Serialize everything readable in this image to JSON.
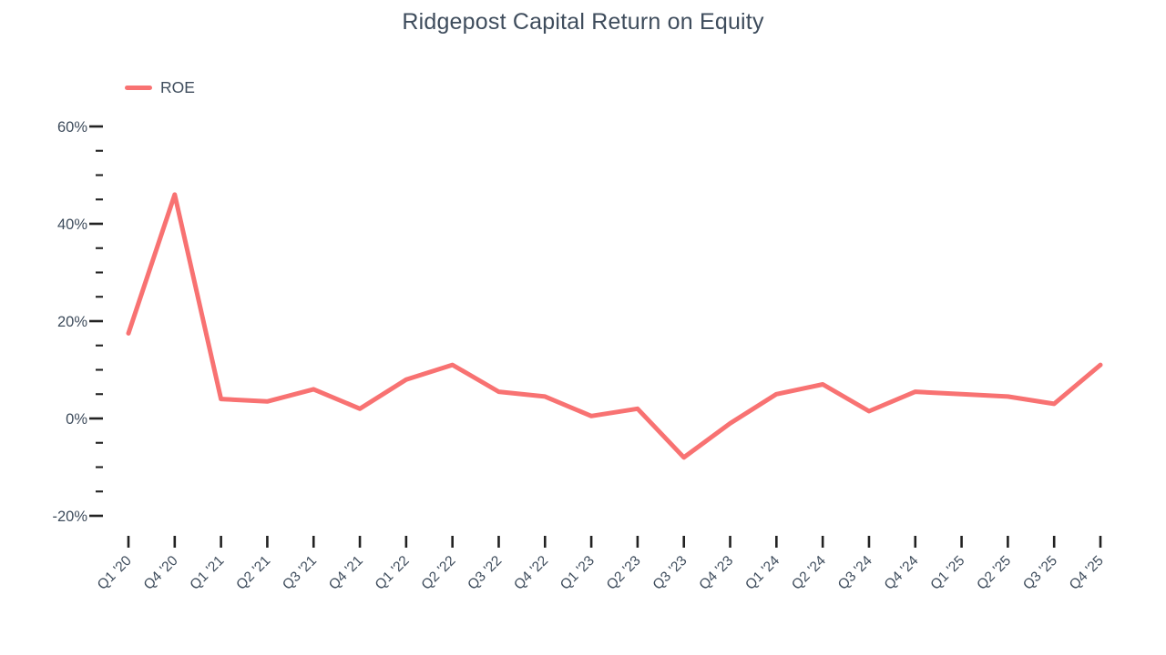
{
  "title": "Ridgepost Capital Return on Equity",
  "legend": {
    "items": [
      {
        "label": "ROE",
        "color": "#f87272"
      }
    ]
  },
  "colors": {
    "line": "#f87272",
    "text": "#3e4c5c",
    "tick": "#222222",
    "background": "#ffffff"
  },
  "chart_data": {
    "type": "line",
    "title": "Ridgepost Capital Return on Equity",
    "categories": [
      "Q1 '20",
      "Q4 '20",
      "Q1 '21",
      "Q2 '21",
      "Q3 '21",
      "Q4 '21",
      "Q1 '22",
      "Q2 '22",
      "Q3 '22",
      "Q4 '22",
      "Q1 '23",
      "Q2 '23",
      "Q3 '23",
      "Q4 '23",
      "Q1 '24",
      "Q2 '24",
      "Q3 '24",
      "Q4 '24",
      "Q1 '25",
      "Q2 '25",
      "Q3 '25",
      "Q4 '25"
    ],
    "series": [
      {
        "name": "ROE",
        "color": "#f87272",
        "values": [
          17.5,
          46,
          4,
          3.5,
          6,
          2,
          8,
          11,
          5.5,
          4.5,
          0.5,
          2,
          -8,
          -1,
          5,
          7,
          1.5,
          5.5,
          5,
          4.5,
          3,
          11
        ]
      }
    ],
    "xlabel": "",
    "ylabel": "",
    "ylim": [
      -20,
      60
    ],
    "y_major_ticks": [
      -20,
      0,
      20,
      40,
      60
    ],
    "y_major_tick_labels": [
      "-20%",
      "0%",
      "20%",
      "40%",
      "60%"
    ],
    "y_minor_tick_step": 5,
    "y_tick_format": "percent",
    "grid": false,
    "legend_position": "top-left",
    "x_label_rotation_deg": -45
  }
}
